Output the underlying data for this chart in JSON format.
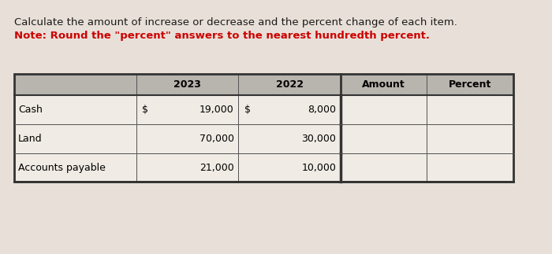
{
  "title_line1": "Calculate the amount of increase or decrease and the percent change of each item.",
  "title_line2": "Note: Round the \"percent\" answers to the nearest hundredth percent.",
  "title_line1_color": "#1a1a1a",
  "title_line2_color": "#cc0000",
  "background_color": "#e8e0d8",
  "table_bg": "#f0ebe4",
  "header_bg": "#b8b4ae",
  "border_color": "#555555",
  "thick_border_color": "#333333",
  "rows": [
    "Cash",
    "Land",
    "Accounts payable"
  ],
  "col_headers": [
    "2023",
    "2022",
    "Amount",
    "Percent"
  ],
  "col_2023_num": [
    "19,000",
    "70,000",
    "21,000"
  ],
  "col_2022_num": [
    "8,000",
    "30,000",
    "10,000"
  ],
  "dollar_2023": [
    true,
    false,
    false
  ],
  "dollar_2022": [
    true,
    false,
    false
  ],
  "font_size_title": 9.5,
  "font_size_table": 9.0
}
